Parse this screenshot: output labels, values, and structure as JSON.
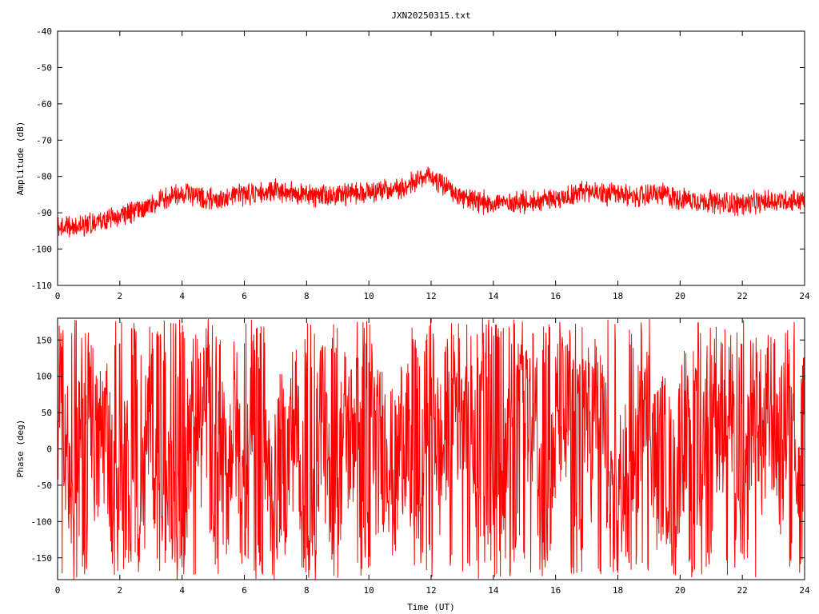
{
  "chart_data": [
    {
      "type": "line",
      "title": "JXN20250315.txt",
      "xlabel": "",
      "ylabel": "Amplitude (dB)",
      "xlim": [
        0,
        24
      ],
      "ylim": [
        -110,
        -40
      ],
      "x_ticks": [
        "0",
        "2",
        "4",
        "6",
        "8",
        "10",
        "12",
        "14",
        "16",
        "18",
        "20",
        "22",
        "24"
      ],
      "y_ticks": [
        "-40",
        "-50",
        "-60",
        "-70",
        "-80",
        "-90",
        "-100",
        "-110"
      ],
      "series": [
        {
          "color": "#ff0000",
          "x": [
            0,
            0.5,
            1,
            1.5,
            2,
            2.5,
            3,
            3.5,
            4,
            4.5,
            5,
            5.5,
            6,
            6.5,
            7,
            7.5,
            8,
            8.5,
            9,
            9.5,
            10,
            10.5,
            11,
            11.5,
            12,
            12.5,
            13,
            13.5,
            14,
            14.5,
            15,
            15.5,
            16,
            16.5,
            17,
            17.5,
            18,
            18.5,
            19,
            19.5,
            20,
            20.5,
            21,
            21.5,
            22,
            22.5,
            23,
            23.5,
            24
          ],
          "y": [
            -93.5,
            -94,
            -93,
            -92.5,
            -91,
            -89.5,
            -88,
            -86,
            -84.5,
            -85.5,
            -86.5,
            -86,
            -85,
            -84.5,
            -84,
            -84,
            -85,
            -85.5,
            -85,
            -84.5,
            -84,
            -83.5,
            -83,
            -81.5,
            -80,
            -83,
            -86,
            -87,
            -87.5,
            -87,
            -87,
            -86.5,
            -86,
            -85,
            -84,
            -84.5,
            -85,
            -85.5,
            -85,
            -85,
            -86,
            -86.5,
            -87,
            -87.5,
            -87.5,
            -87,
            -87,
            -86.5,
            -86.5
          ],
          "spread": 2.5
        }
      ]
    },
    {
      "type": "line",
      "title": "",
      "xlabel": "Time (UT)",
      "ylabel": "Phase (deg)",
      "xlim": [
        0,
        24
      ],
      "ylim": [
        -180,
        180
      ],
      "x_ticks": [
        "0",
        "2",
        "4",
        "6",
        "8",
        "10",
        "12",
        "14",
        "16",
        "18",
        "20",
        "22",
        "24"
      ],
      "y_ticks": [
        "150",
        "100",
        "50",
        "0",
        "-50",
        "-100",
        "-150"
      ],
      "series": [
        {
          "color": "#ff0000",
          "x": [
            0,
            0.5,
            1,
            1.5,
            2,
            2.5,
            3,
            3.5,
            4,
            4.5,
            5,
            5.5,
            6,
            6.5,
            7,
            7.5,
            8,
            8.5,
            9,
            9.5,
            10,
            10.5,
            11,
            11.5,
            12,
            12.5,
            13,
            13.5,
            14,
            14.5,
            15,
            15.5,
            16,
            16.5,
            17,
            17.5,
            18,
            18.5,
            19,
            19.5,
            20,
            20.5,
            21,
            21.5,
            22,
            22.5,
            23,
            23.5,
            24
          ],
          "y": [
            60,
            -80,
            120,
            -20,
            -60,
            -140,
            20,
            -150,
            -90,
            70,
            110,
            -10,
            -40,
            170,
            -120,
            80,
            -170,
            20,
            -100,
            90,
            150,
            -60,
            40,
            -150,
            100,
            0,
            150,
            -100,
            -170,
            60,
            170,
            -90,
            -30,
            140,
            90,
            20,
            -120,
            -50,
            110,
            -80,
            30,
            -160,
            140,
            50,
            -150,
            100,
            -20,
            120,
            -170
          ]
        }
      ]
    }
  ]
}
